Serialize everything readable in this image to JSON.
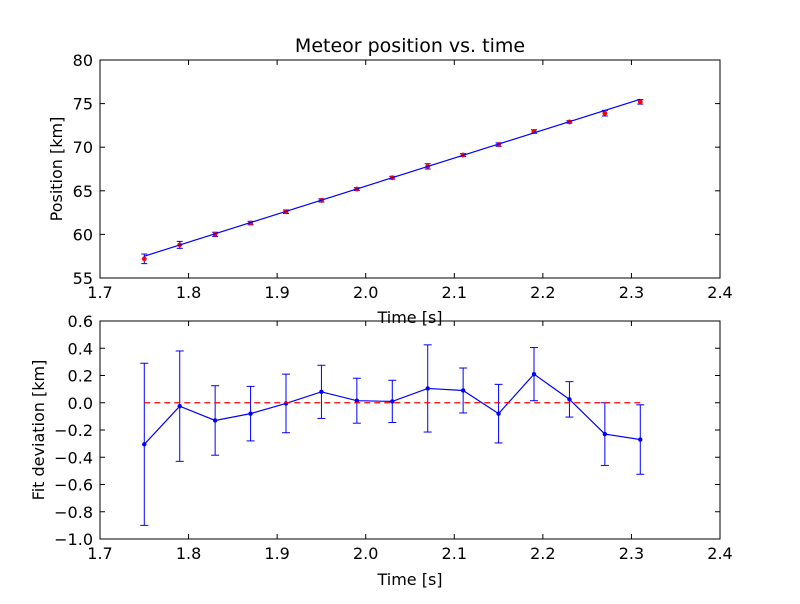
{
  "chart_data": [
    {
      "type": "scatter",
      "title": "Meteor position vs. time",
      "xlabel": "Time [s]",
      "ylabel": "Position [km]",
      "xlim": [
        1.7,
        2.4
      ],
      "ylim": [
        55,
        80
      ],
      "xticks": [
        "1.7",
        "1.8",
        "1.9",
        "2.0",
        "2.1",
        "2.2",
        "2.3",
        "2.4"
      ],
      "yticks": [
        "55",
        "60",
        "65",
        "70",
        "75",
        "80"
      ],
      "series": [
        {
          "kind": "points-with-errorbars",
          "color": "#ff0000",
          "errorbar_color": "#0000ff",
          "x": [
            1.75,
            1.79,
            1.83,
            1.87,
            1.91,
            1.95,
            1.99,
            2.03,
            2.07,
            2.11,
            2.15,
            2.19,
            2.23,
            2.27,
            2.31
          ],
          "y": [
            57.2,
            58.8,
            60.0,
            61.3,
            62.6,
            63.9,
            65.2,
            66.5,
            67.8,
            69.1,
            70.3,
            71.8,
            72.9,
            73.9,
            75.2
          ],
          "yerr": [
            0.55,
            0.4,
            0.25,
            0.2,
            0.2,
            0.18,
            0.16,
            0.16,
            0.3,
            0.16,
            0.2,
            0.2,
            0.14,
            0.32,
            0.26
          ]
        },
        {
          "kind": "fit-line",
          "color": "#0000ff",
          "x": [
            1.75,
            2.31
          ],
          "y": [
            57.5,
            75.5
          ]
        }
      ],
      "grid": false
    },
    {
      "type": "line",
      "xlabel": "Time [s]",
      "ylabel": "Fit deviation [km]",
      "xlim": [
        1.7,
        2.4
      ],
      "ylim": [
        -1.0,
        0.6
      ],
      "xticks": [
        "1.7",
        "1.8",
        "1.9",
        "2.0",
        "2.1",
        "2.2",
        "2.3",
        "2.4"
      ],
      "yticks": [
        "−1.0",
        "−0.8",
        "−0.6",
        "−0.4",
        "−0.2",
        "0.0",
        "0.2",
        "0.4",
        "0.6"
      ],
      "series": [
        {
          "kind": "line-with-errorbars",
          "color": "#0000ff",
          "x": [
            1.75,
            1.79,
            1.83,
            1.87,
            1.91,
            1.95,
            1.99,
            2.03,
            2.07,
            2.11,
            2.15,
            2.19,
            2.23,
            2.27,
            2.31
          ],
          "y": [
            -0.305,
            -0.025,
            -0.13,
            -0.08,
            -0.005,
            0.08,
            0.015,
            0.01,
            0.105,
            0.09,
            -0.08,
            0.21,
            0.025,
            -0.23,
            -0.27
          ],
          "yerr": [
            0.595,
            0.405,
            0.255,
            0.2,
            0.215,
            0.195,
            0.165,
            0.155,
            0.32,
            0.165,
            0.215,
            0.195,
            0.13,
            0.23,
            0.255
          ]
        },
        {
          "kind": "reference-line",
          "color": "#ff0000",
          "style": "dashed",
          "x": [
            1.75,
            2.31
          ],
          "y": [
            0.0,
            0.0
          ]
        }
      ],
      "grid": false
    }
  ]
}
